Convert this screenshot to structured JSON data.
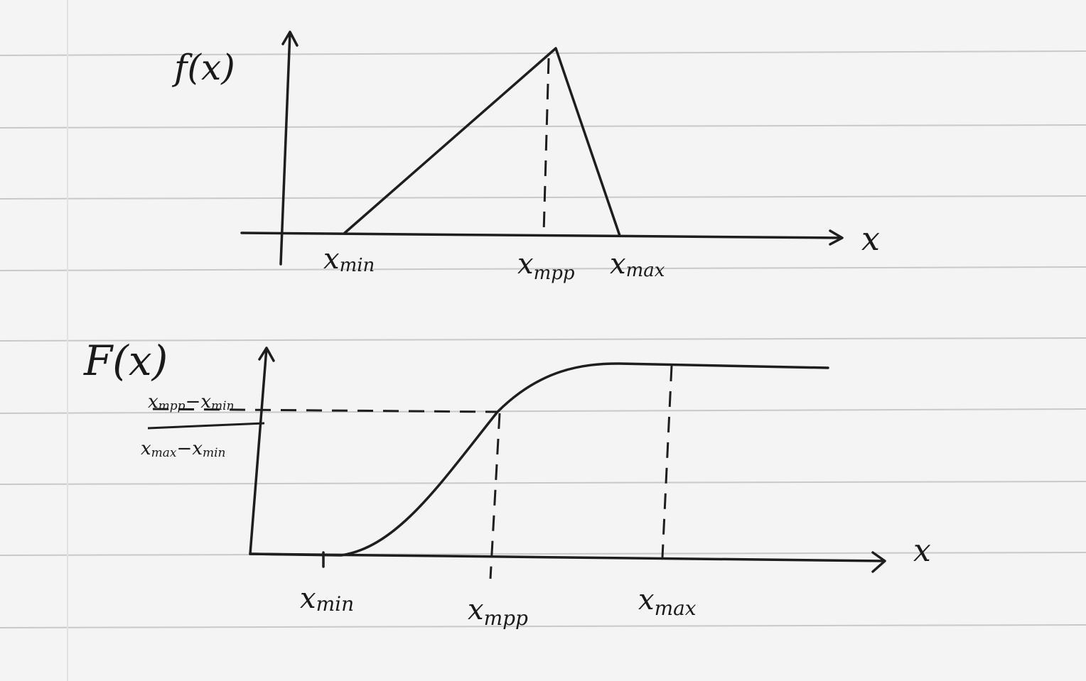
{
  "pdf_panel": {
    "y_label": "f(x)",
    "x_label": "x",
    "ticks": [
      {
        "base": "x",
        "sub": "min"
      },
      {
        "base": "x",
        "sub": "mpp"
      },
      {
        "base": "x",
        "sub": "max"
      }
    ]
  },
  "cdf_panel": {
    "y_label": "F(x)",
    "x_label": "x",
    "fraction": {
      "numerator": {
        "a": {
          "base": "x",
          "sub": "mpp"
        },
        "op": "−",
        "b": {
          "base": "x",
          "sub": "min"
        }
      },
      "denominator": {
        "a": {
          "base": "x",
          "sub": "max"
        },
        "op": "−",
        "b": {
          "base": "x",
          "sub": "min"
        }
      }
    },
    "ticks": [
      {
        "base": "x",
        "sub": "min"
      },
      {
        "base": "x",
        "sub": "mpp"
      },
      {
        "base": "x",
        "sub": "max"
      }
    ]
  }
}
